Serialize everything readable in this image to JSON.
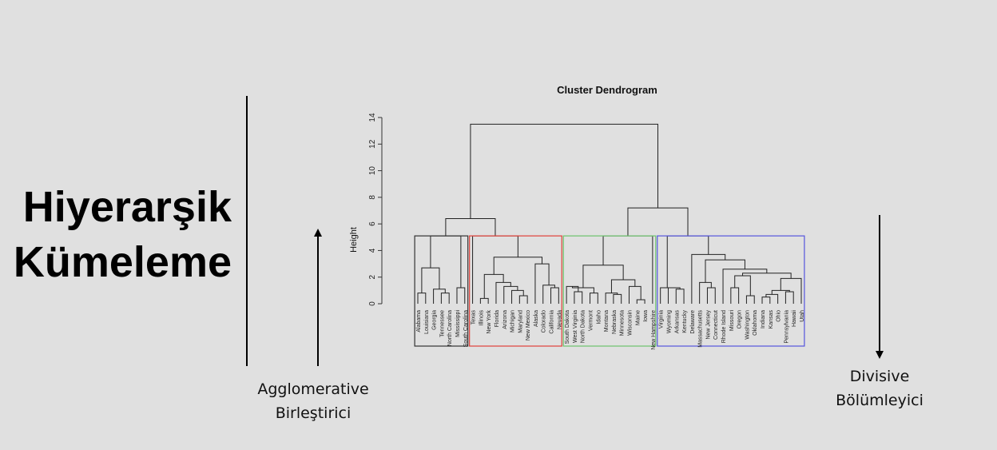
{
  "title": [
    "Hiyerarşik",
    "Kümeleme"
  ],
  "left_caption": [
    "Agglomerative",
    "Birleştirici"
  ],
  "right_caption": [
    "Divisive",
    "Bölümleyici"
  ],
  "chart_data": {
    "type": "dendrogram",
    "title": "Cluster Dendrogram",
    "ylabel": "Height",
    "yticks": [
      0,
      2,
      4,
      6,
      8,
      10,
      12,
      14
    ],
    "ylim": [
      0,
      14
    ],
    "leaves": [
      "Alabama",
      "Louisiana",
      "Georgia",
      "Tennessee",
      "North Carolina",
      "Mississippi",
      "South Carolina",
      "Texas",
      "Illinois",
      "New York",
      "Florida",
      "Arizona",
      "Michigan",
      "Maryland",
      "New Mexico",
      "Alaska",
      "Colorado",
      "California",
      "Nevada",
      "South Dakota",
      "West Virginia",
      "North Dakota",
      "Vermont",
      "Idaho",
      "Montana",
      "Nebraska",
      "Minnesota",
      "Wisconsin",
      "Maine",
      "Iowa",
      "New Hampshire",
      "Virginia",
      "Wyoming",
      "Arkansas",
      "Kentucky",
      "Delaware",
      "Massachusetts",
      "New Jersey",
      "Connecticut",
      "Rhode Island",
      "Missouri",
      "Oregon",
      "Washington",
      "Oklahoma",
      "Indiana",
      "Kansas",
      "Ohio",
      "Pennsylvania",
      "Hawaii",
      "Utah"
    ],
    "merges": [
      [
        0,
        1,
        0.8
      ],
      [
        3,
        4,
        0.8
      ],
      [
        5,
        6,
        1.2
      ],
      [
        2,
        51,
        1.1
      ],
      [
        50,
        53,
        2.7
      ],
      [
        52,
        54,
        5.1
      ],
      [
        13,
        14,
        0.6
      ],
      [
        12,
        56,
        1.0
      ],
      [
        11,
        57,
        1.3
      ],
      [
        10,
        58,
        1.6
      ],
      [
        8,
        9,
        0.4
      ],
      [
        60,
        59,
        2.2
      ],
      [
        17,
        18,
        1.2
      ],
      [
        16,
        62,
        1.4
      ],
      [
        15,
        63,
        3.0
      ],
      [
        61,
        64,
        3.5
      ],
      [
        7,
        65,
        5.1
      ],
      [
        55,
        66,
        6.4
      ],
      [
        25,
        26,
        0.7
      ],
      [
        24,
        68,
        0.8
      ],
      [
        28,
        29,
        0.3
      ],
      [
        27,
        70,
        1.3
      ],
      [
        69,
        71,
        1.8
      ],
      [
        20,
        21,
        0.9
      ],
      [
        19,
        73,
        1.3
      ],
      [
        22,
        23,
        0.8
      ],
      [
        74,
        75,
        1.2
      ],
      [
        76,
        72,
        2.9
      ],
      [
        77,
        30,
        5.1
      ],
      [
        44,
        45,
        0.5
      ],
      [
        46,
        79,
        0.7
      ],
      [
        47,
        48,
        0.9
      ],
      [
        80,
        81,
        1.0
      ],
      [
        82,
        49,
        1.9
      ],
      [
        40,
        41,
        1.2
      ],
      [
        42,
        43,
        0.6
      ],
      [
        84,
        85,
        2.1
      ],
      [
        86,
        83,
        2.3
      ],
      [
        39,
        87,
        2.6
      ],
      [
        37,
        38,
        1.2
      ],
      [
        36,
        89,
        1.6
      ],
      [
        88,
        90,
        3.3
      ],
      [
        35,
        91,
        3.7
      ],
      [
        34,
        33,
        1.1
      ],
      [
        32,
        93,
        1.2
      ],
      [
        31,
        94,
        1.2
      ],
      [
        95,
        92,
        5.1
      ],
      [
        78,
        96,
        7.2
      ],
      [
        67,
        97,
        13.5
      ]
    ],
    "clusters": [
      {
        "leaves": [
          0,
          6
        ],
        "color": "#333333"
      },
      {
        "leaves": [
          7,
          18
        ],
        "color": "#e0413a"
      },
      {
        "leaves": [
          19,
          30
        ],
        "color": "#6cc26c"
      },
      {
        "leaves": [
          31,
          49
        ],
        "color": "#5555dd"
      }
    ],
    "cut_height": 5.1
  }
}
